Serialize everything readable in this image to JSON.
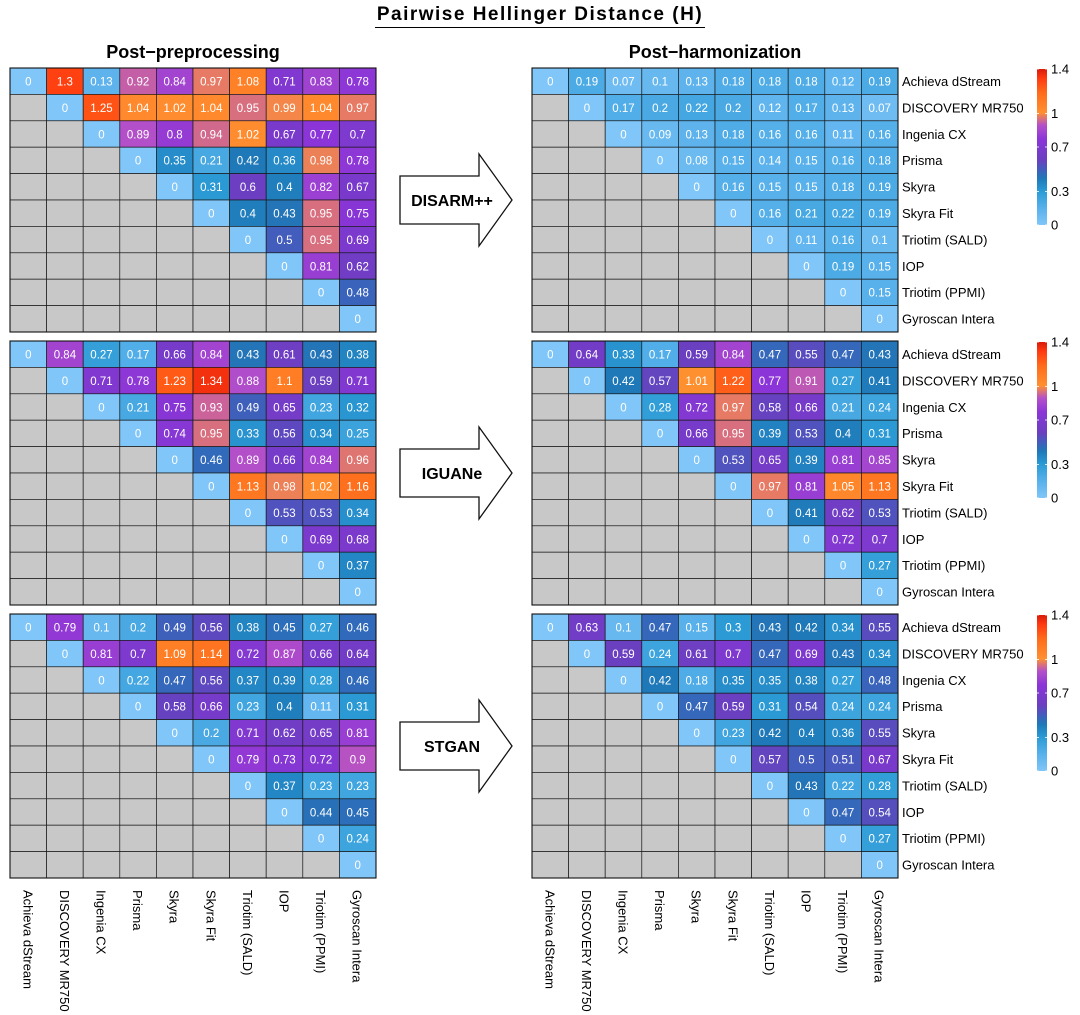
{
  "title": "Pairwise Hellinger Distance (H)",
  "column_titles": [
    "Post−preprocessing",
    "Post−harmonization"
  ],
  "scanners": [
    "Achieva dStream",
    "DISCOVERY MR750",
    "Ingenia CX",
    "Prisma",
    "Skyra",
    "Skyra Fit",
    "Triotim (SALD)",
    "IOP",
    "Triotim (PPMI)",
    "Gyroscan Intera"
  ],
  "legend_ticks": [
    "1.4",
    "1",
    "0.7",
    "0.3",
    "0"
  ],
  "colors": {
    "lower_triangle": "#c8c8c8",
    "scale": [
      "#80c6f8",
      "#2a9ad4",
      "#1f78b8",
      "#6a3fc0",
      "#8b35d8",
      "#b450c8",
      "#ff9030",
      "#ff6a1a",
      "#ff3a10",
      "#d91a0a"
    ]
  },
  "chart_data": [
    {
      "type": "heatmap",
      "method": "DISARM++",
      "title_left": "Post−preprocessing",
      "title_right": "Post−harmonization",
      "value_range": [
        0,
        1.4
      ],
      "pre": [
        [
          "0",
          "1.3",
          "0.13",
          "0.92",
          "0.84",
          "0.97",
          "1.08",
          "0.71",
          "0.83",
          "0.78"
        ],
        [
          null,
          "0",
          "1.25",
          "1.04",
          "1.02",
          "1.04",
          "0.95",
          "0.99",
          "1.04",
          "0.97"
        ],
        [
          null,
          null,
          "0",
          "0.89",
          "0.8",
          "0.94",
          "1.02",
          "0.67",
          "0.77",
          "0.7"
        ],
        [
          null,
          null,
          null,
          "0",
          "0.35",
          "0.21",
          "0.42",
          "0.36",
          "0.98",
          "0.78"
        ],
        [
          null,
          null,
          null,
          null,
          "0",
          "0.31",
          "0.6",
          "0.4",
          "0.82",
          "0.67"
        ],
        [
          null,
          null,
          null,
          null,
          null,
          "0",
          "0.4",
          "0.43",
          "0.95",
          "0.75"
        ],
        [
          null,
          null,
          null,
          null,
          null,
          null,
          "0",
          "0.5",
          "0.95",
          "0.69"
        ],
        [
          null,
          null,
          null,
          null,
          null,
          null,
          null,
          "0",
          "0.81",
          "0.62"
        ],
        [
          null,
          null,
          null,
          null,
          null,
          null,
          null,
          null,
          "0",
          "0.48"
        ],
        [
          null,
          null,
          null,
          null,
          null,
          null,
          null,
          null,
          null,
          "0"
        ]
      ],
      "post": [
        [
          "0",
          "0.19",
          "0.07",
          "0.1",
          "0.13",
          "0.18",
          "0.18",
          "0.18",
          "0.12",
          "0.19"
        ],
        [
          null,
          "0",
          "0.17",
          "0.2",
          "0.22",
          "0.2",
          "0.12",
          "0.17",
          "0.13",
          "0.07"
        ],
        [
          null,
          null,
          "0",
          "0.09",
          "0.13",
          "0.18",
          "0.16",
          "0.16",
          "0.11",
          "0.16"
        ],
        [
          null,
          null,
          null,
          "0",
          "0.08",
          "0.15",
          "0.14",
          "0.15",
          "0.16",
          "0.18"
        ],
        [
          null,
          null,
          null,
          null,
          "0",
          "0.16",
          "0.15",
          "0.15",
          "0.18",
          "0.19"
        ],
        [
          null,
          null,
          null,
          null,
          null,
          "0",
          "0.16",
          "0.21",
          "0.22",
          "0.19"
        ],
        [
          null,
          null,
          null,
          null,
          null,
          null,
          "0",
          "0.11",
          "0.16",
          "0.1"
        ],
        [
          null,
          null,
          null,
          null,
          null,
          null,
          null,
          "0",
          "0.19",
          "0.15"
        ],
        [
          null,
          null,
          null,
          null,
          null,
          null,
          null,
          null,
          "0",
          "0.15"
        ],
        [
          null,
          null,
          null,
          null,
          null,
          null,
          null,
          null,
          null,
          "0"
        ]
      ]
    },
    {
      "type": "heatmap",
      "method": "IGUANe",
      "value_range": [
        0,
        1.4
      ],
      "pre": [
        [
          "0",
          "0.84",
          "0.27",
          "0.17",
          "0.66",
          "0.84",
          "0.43",
          "0.61",
          "0.43",
          "0.38"
        ],
        [
          null,
          "0",
          "0.71",
          "0.78",
          "1.23",
          "1.34",
          "0.88",
          "1.1",
          "0.59",
          "0.71"
        ],
        [
          null,
          null,
          "0",
          "0.21",
          "0.75",
          "0.93",
          "0.49",
          "0.65",
          "0.23",
          "0.32"
        ],
        [
          null,
          null,
          null,
          "0",
          "0.74",
          "0.95",
          "0.33",
          "0.56",
          "0.34",
          "0.25"
        ],
        [
          null,
          null,
          null,
          null,
          "0",
          "0.46",
          "0.89",
          "0.66",
          "0.84",
          "0.96"
        ],
        [
          null,
          null,
          null,
          null,
          null,
          "0",
          "1.13",
          "0.98",
          "1.02",
          "1.16"
        ],
        [
          null,
          null,
          null,
          null,
          null,
          null,
          "0",
          "0.53",
          "0.53",
          "0.34"
        ],
        [
          null,
          null,
          null,
          null,
          null,
          null,
          null,
          "0",
          "0.69",
          "0.68"
        ],
        [
          null,
          null,
          null,
          null,
          null,
          null,
          null,
          null,
          "0",
          "0.37"
        ],
        [
          null,
          null,
          null,
          null,
          null,
          null,
          null,
          null,
          null,
          "0"
        ]
      ],
      "post": [
        [
          "0",
          "0.64",
          "0.33",
          "0.17",
          "0.59",
          "0.84",
          "0.47",
          "0.55",
          "0.47",
          "0.43"
        ],
        [
          null,
          "0",
          "0.42",
          "0.57",
          "1.01",
          "1.22",
          "0.77",
          "0.91",
          "0.27",
          "0.41"
        ],
        [
          null,
          null,
          "0",
          "0.28",
          "0.72",
          "0.97",
          "0.58",
          "0.66",
          "0.21",
          "0.24"
        ],
        [
          null,
          null,
          null,
          "0",
          "0.66",
          "0.95",
          "0.39",
          "0.53",
          "0.4",
          "0.31"
        ],
        [
          null,
          null,
          null,
          null,
          "0",
          "0.53",
          "0.65",
          "0.39",
          "0.81",
          "0.85"
        ],
        [
          null,
          null,
          null,
          null,
          null,
          "0",
          "0.97",
          "0.81",
          "1.05",
          "1.13"
        ],
        [
          null,
          null,
          null,
          null,
          null,
          null,
          "0",
          "0.41",
          "0.62",
          "0.53"
        ],
        [
          null,
          null,
          null,
          null,
          null,
          null,
          null,
          "0",
          "0.72",
          "0.7"
        ],
        [
          null,
          null,
          null,
          null,
          null,
          null,
          null,
          null,
          "0",
          "0.27"
        ],
        [
          null,
          null,
          null,
          null,
          null,
          null,
          null,
          null,
          null,
          "0"
        ]
      ]
    },
    {
      "type": "heatmap",
      "method": "STGAN",
      "value_range": [
        0,
        1.4
      ],
      "pre": [
        [
          "0",
          "0.79",
          "0.1",
          "0.2",
          "0.49",
          "0.56",
          "0.38",
          "0.45",
          "0.27",
          "0.46"
        ],
        [
          null,
          "0",
          "0.81",
          "0.7",
          "1.09",
          "1.14",
          "0.72",
          "0.87",
          "0.66",
          "0.64"
        ],
        [
          null,
          null,
          "0",
          "0.22",
          "0.47",
          "0.56",
          "0.37",
          "0.39",
          "0.28",
          "0.46"
        ],
        [
          null,
          null,
          null,
          "0",
          "0.58",
          "0.66",
          "0.23",
          "0.4",
          "0.11",
          "0.31"
        ],
        [
          null,
          null,
          null,
          null,
          "0",
          "0.2",
          "0.71",
          "0.62",
          "0.65",
          "0.81"
        ],
        [
          null,
          null,
          null,
          null,
          null,
          "0",
          "0.79",
          "0.73",
          "0.72",
          "0.9"
        ],
        [
          null,
          null,
          null,
          null,
          null,
          null,
          "0",
          "0.37",
          "0.23",
          "0.23"
        ],
        [
          null,
          null,
          null,
          null,
          null,
          null,
          null,
          "0",
          "0.44",
          "0.45"
        ],
        [
          null,
          null,
          null,
          null,
          null,
          null,
          null,
          null,
          "0",
          "0.24"
        ],
        [
          null,
          null,
          null,
          null,
          null,
          null,
          null,
          null,
          null,
          "0"
        ]
      ],
      "post": [
        [
          "0",
          "0.63",
          "0.1",
          "0.47",
          "0.15",
          "0.3",
          "0.43",
          "0.42",
          "0.34",
          "0.55"
        ],
        [
          null,
          "0",
          "0.59",
          "0.24",
          "0.61",
          "0.7",
          "0.47",
          "0.69",
          "0.43",
          "0.34"
        ],
        [
          null,
          null,
          "0",
          "0.42",
          "0.18",
          "0.35",
          "0.35",
          "0.38",
          "0.27",
          "0.48"
        ],
        [
          null,
          null,
          null,
          "0",
          "0.47",
          "0.59",
          "0.31",
          "0.54",
          "0.24",
          "0.24"
        ],
        [
          null,
          null,
          null,
          null,
          "0",
          "0.23",
          "0.42",
          "0.4",
          "0.36",
          "0.55"
        ],
        [
          null,
          null,
          null,
          null,
          null,
          "0",
          "0.57",
          "0.5",
          "0.51",
          "0.67"
        ],
        [
          null,
          null,
          null,
          null,
          null,
          null,
          "0",
          "0.43",
          "0.22",
          "0.28"
        ],
        [
          null,
          null,
          null,
          null,
          null,
          null,
          null,
          "0",
          "0.47",
          "0.54"
        ],
        [
          null,
          null,
          null,
          null,
          null,
          null,
          null,
          null,
          "0",
          "0.27"
        ],
        [
          null,
          null,
          null,
          null,
          null,
          null,
          null,
          null,
          null,
          "0"
        ]
      ]
    }
  ]
}
